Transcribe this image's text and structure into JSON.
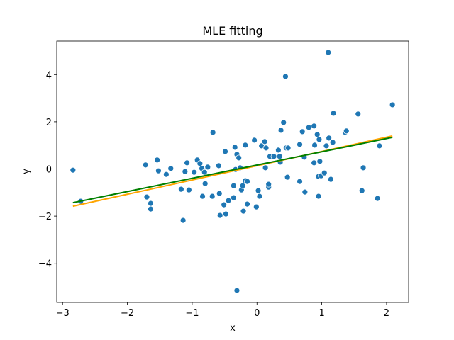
{
  "chart_data": {
    "type": "scatter",
    "title": "MLE fitting",
    "xlabel": "x",
    "ylabel": "y",
    "xlim": [
      -3.09,
      2.34
    ],
    "ylim": [
      -5.66,
      5.42
    ],
    "xticks": [
      {
        "value": -3,
        "label": "−3"
      },
      {
        "value": -2,
        "label": "−2"
      },
      {
        "value": -1,
        "label": "−1"
      },
      0,
      1,
      2
    ],
    "yticks": [
      {
        "value": -4,
        "label": "−4"
      },
      {
        "value": -2,
        "label": "−2"
      },
      0,
      2,
      4
    ],
    "series": [
      {
        "type": "scatter",
        "color": "#1f77b4",
        "x": [
          -2.84,
          -2.72,
          -1.72,
          -1.7,
          -1.64,
          -1.64,
          -1.54,
          -1.52,
          -1.4,
          -1.33,
          -1.17,
          -1.14,
          -1.11,
          -1.08,
          -1.05,
          -0.97,
          -0.92,
          -0.88,
          -0.85,
          -0.84,
          -0.81,
          -0.8,
          -0.76,
          -0.69,
          -0.68,
          -0.59,
          -0.58,
          -0.57,
          -0.51,
          -0.49,
          -0.48,
          -0.44,
          -0.36,
          -0.36,
          -0.34,
          -0.33,
          -0.31,
          -0.31,
          -0.28,
          -0.26,
          -0.24,
          -0.22,
          -0.21,
          -0.18,
          -0.18,
          -0.15,
          -0.15,
          -0.04,
          -0.01,
          0.02,
          0.04,
          0.07,
          0.12,
          0.13,
          0.14,
          0.18,
          0.18,
          0.2,
          0.26,
          0.33,
          0.35,
          0.36,
          0.37,
          0.41,
          0.44,
          0.45,
          0.48,
          0.47,
          0.66,
          0.66,
          0.7,
          0.73,
          0.74,
          0.8,
          0.88,
          0.88,
          0.89,
          0.93,
          0.95,
          0.95,
          0.96,
          0.97,
          0.99,
          1.04,
          1.07,
          1.1,
          1.11,
          1.14,
          1.17,
          1.18,
          1.36,
          1.38,
          1.56,
          1.62,
          1.64,
          1.86,
          1.89,
          2.09
        ],
        "values": [
          -0.05,
          -1.37,
          0.17,
          -1.19,
          -1.46,
          -1.7,
          0.38,
          -0.08,
          -0.23,
          0.02,
          -0.86,
          -2.18,
          -0.11,
          0.26,
          -0.89,
          -0.14,
          0.38,
          0.23,
          0.02,
          -1.16,
          -0.14,
          -0.62,
          0.08,
          -1.16,
          1.55,
          0.14,
          -1.04,
          -1.97,
          -1.52,
          0.74,
          -1.91,
          -1.34,
          -0.71,
          -1.22,
          0.92,
          -0.02,
          0.62,
          -5.15,
          0.47,
          0.05,
          -0.89,
          -0.71,
          -1.79,
          1.01,
          -0.5,
          -0.53,
          -1.49,
          1.22,
          -1.61,
          -0.92,
          -1.16,
          0.98,
          1.16,
          0.05,
          0.89,
          -0.77,
          -0.65,
          0.53,
          0.53,
          0.8,
          0.53,
          0.29,
          1.64,
          1.97,
          3.92,
          0.89,
          0.89,
          -0.35,
          1.04,
          -0.53,
          1.58,
          0.5,
          -0.98,
          1.76,
          1.82,
          0.26,
          1.01,
          1.46,
          -0.32,
          -1.16,
          1.25,
          0.32,
          -0.29,
          -0.17,
          0.98,
          4.94,
          1.31,
          -0.44,
          1.13,
          2.36,
          1.55,
          1.61,
          2.33,
          -0.92,
          0.05,
          -1.25,
          0.98,
          2.72
        ]
      },
      {
        "type": "line",
        "color": "#ffa500",
        "x": [
          -2.84,
          2.09
        ],
        "values": [
          -1.58,
          1.4
        ]
      },
      {
        "type": "line",
        "color": "#008000",
        "x": [
          -2.84,
          2.09
        ],
        "values": [
          -1.43,
          1.34
        ]
      }
    ]
  }
}
